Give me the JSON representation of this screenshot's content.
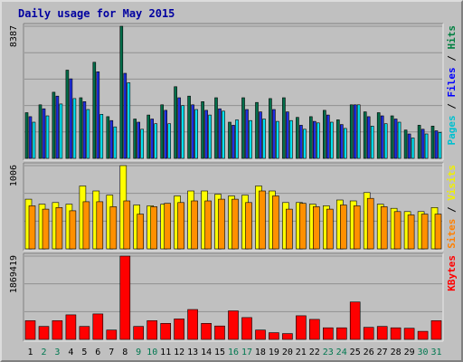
{
  "chart_data": {
    "type": "bar",
    "title": "Daily usage for May 2015",
    "days": [
      "1",
      "2",
      "3",
      "4",
      "5",
      "6",
      "7",
      "8",
      "9",
      "10",
      "11",
      "12",
      "13",
      "14",
      "15",
      "16",
      "17",
      "18",
      "19",
      "20",
      "21",
      "22",
      "23",
      "24",
      "25",
      "26",
      "27",
      "28",
      "29",
      "30",
      "31"
    ],
    "weekend_days": [
      "2",
      "3",
      "9",
      "10",
      "16",
      "17",
      "23",
      "24",
      "30",
      "31"
    ],
    "panels": [
      {
        "id": "hits",
        "max_label": "8387",
        "ymax": 8387,
        "legend": [
          {
            "text": "Pages",
            "color": "#00c0d0"
          },
          {
            "text": " / ",
            "color": "#000000"
          },
          {
            "text": "Files",
            "color": "#0000ff"
          },
          {
            "text": " / ",
            "color": "#000000"
          },
          {
            "text": "Hits",
            "color": "#008040"
          }
        ],
        "series": [
          {
            "name": "Hits",
            "color": "#006e4a",
            "values": [
              2900,
              3400,
              4200,
              5600,
              3850,
              6100,
              2650,
              8387,
              2500,
              2750,
              3400,
              4550,
              3950,
              3600,
              3850,
              2300,
              3850,
              3550,
              3800,
              3850,
              2600,
              2650,
              3050,
              2450,
              3400,
              2950,
              2900,
              2700,
              1800,
              2100,
              2050
            ]
          },
          {
            "name": "Files",
            "color": "#1e2ee0",
            "values": [
              2650,
              3150,
              3950,
              5050,
              3600,
              5500,
              2400,
              5400,
              2300,
              2500,
              3050,
              3850,
              3400,
              3050,
              3150,
              2100,
              3100,
              2950,
              3100,
              2950,
              2100,
              2350,
              2750,
              2150,
              3400,
              2650,
              2700,
              2500,
              1550,
              1850,
              1750
            ]
          },
          {
            "name": "Pages",
            "color": "#00e0f0",
            "values": [
              2300,
              2700,
              3450,
              3800,
              3100,
              2800,
              2000,
              4800,
              1850,
              2200,
              2200,
              3350,
              3100,
              2750,
              3000,
              2450,
              2400,
              2500,
              2350,
              2400,
              1850,
              2250,
              2300,
              1900,
              3400,
              2050,
              2200,
              2300,
              1300,
              1550,
              1650
            ]
          }
        ]
      },
      {
        "id": "visits",
        "max_label": "1006",
        "ymax": 1006,
        "legend": [
          {
            "text": "Sites",
            "color": "#ff8000"
          },
          {
            "text": " / ",
            "color": "#000000"
          },
          {
            "text": "Visits",
            "color": "#f0f000"
          }
        ],
        "series": [
          {
            "name": "Visits",
            "color": "#ffff00",
            "values": [
              600,
              540,
              560,
              540,
              760,
              700,
              650,
              1006,
              530,
              520,
              540,
              640,
              700,
              700,
              660,
              640,
              650,
              760,
              700,
              560,
              560,
              540,
              520,
              590,
              580,
              680,
              540,
              490,
              450,
              450,
              500
            ]
          },
          {
            "name": "Sites",
            "color": "#ff9000",
            "values": [
              520,
              480,
              500,
              460,
              570,
              570,
              510,
              580,
              420,
              510,
              550,
              560,
              580,
              580,
              600,
              600,
              560,
              700,
              640,
              480,
              550,
              510,
              480,
              530,
              520,
              610,
              510,
              450,
              410,
              420,
              420
            ]
          }
        ]
      },
      {
        "id": "kbytes",
        "max_label": "1869419",
        "ymax": 1869419,
        "legend": [
          {
            "text": "KBytes",
            "color": "#ff0000"
          }
        ],
        "series": [
          {
            "name": "KBytes",
            "color": "#ff0000",
            "values": [
              420000,
              290000,
              420000,
              550000,
              290000,
              570000,
              210000,
              1869419,
              290000,
              420000,
              360000,
              460000,
              670000,
              360000,
              300000,
              640000,
              490000,
              210000,
              150000,
              130000,
              530000,
              450000,
              260000,
              260000,
              840000,
              270000,
              290000,
              260000,
              250000,
              180000,
              420000
            ]
          }
        ]
      }
    ]
  }
}
